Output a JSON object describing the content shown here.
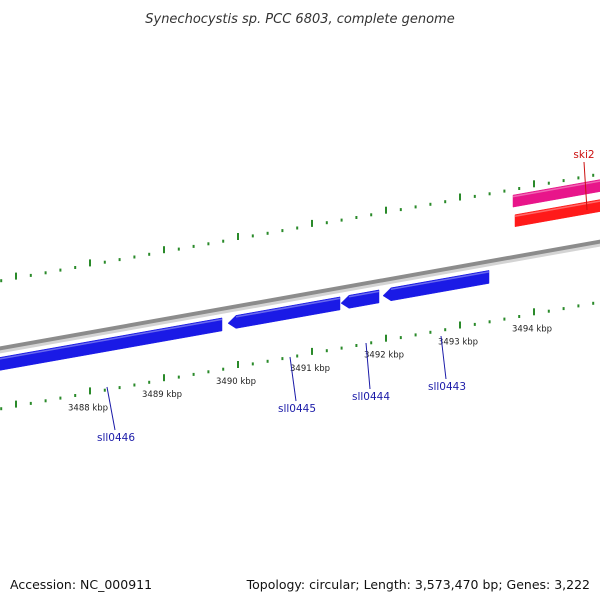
{
  "title": "Synechocystis sp. PCC 6803, complete genome",
  "accession": "Accession: NC_000911",
  "summary": "Topology: circular; Length: 3,573,470 bp; Genes: 3,222",
  "colors": {
    "tick": "#2a8a2a",
    "backbone": "#8c8c8c",
    "reverse_gene": "#1a1ae6",
    "reverse_label": "#1a1aa8",
    "forward_gene_1": "#e8158a",
    "forward_gene_2": "#ff1a1a",
    "forward_label": "#cc1111"
  },
  "ticks": [
    {
      "label": "3488 kbp"
    },
    {
      "label": "3489 kbp"
    },
    {
      "label": "3490 kbp"
    },
    {
      "label": "3491 kbp"
    },
    {
      "label": "3492 kbp"
    },
    {
      "label": "3493 kbp"
    },
    {
      "label": "3494 kbp"
    }
  ],
  "reverse_genes": [
    {
      "name": "sll0446"
    },
    {
      "name": "sll0445"
    },
    {
      "name": "sll0444"
    },
    {
      "name": "sll0443"
    }
  ],
  "forward_genes": [
    {
      "name": "ski2"
    }
  ]
}
